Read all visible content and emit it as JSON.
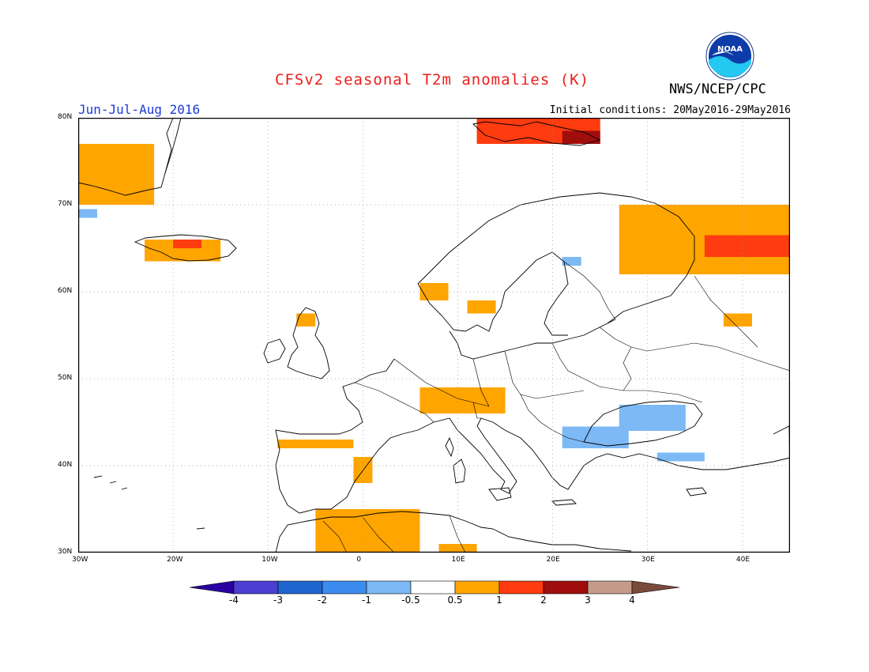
{
  "title": "CFSv2 seasonal T2m anomalies (K)",
  "season": "Jun-Jul-Aug 2016",
  "initial_conditions": "Initial conditions: 20May2016-29May2016",
  "organization": "NWS/NCEP/CPC",
  "logo_text": "NOAA",
  "map": {
    "lon_range": [
      -30,
      45
    ],
    "lat_range": [
      30,
      80
    ],
    "grid": true,
    "lon_ticks": [
      "30W",
      "20W",
      "10W",
      "0",
      "10E",
      "20E",
      "30E",
      "40E"
    ],
    "lat_ticks": [
      "80N",
      "70N",
      "60N",
      "50N",
      "40N",
      "30N"
    ]
  },
  "colorbar": {
    "labels": [
      "-4",
      "-3",
      "-2",
      "-1",
      "-0.5",
      "0.5",
      "1",
      "2",
      "3",
      "4"
    ],
    "colors": [
      "#2a00a0",
      "#4a3fd0",
      "#1f66d0",
      "#3c8cf0",
      "#7db9f4",
      "#ffffff",
      "#ffa500",
      "#ff3b10",
      "#a00d0d",
      "#c79b8c",
      "#7a4a3a"
    ]
  },
  "anomaly_regions": [
    {
      "category": "0.5 to 1",
      "color": "#ffa500",
      "lon": [
        -30,
        -22
      ],
      "lat": [
        70,
        77
      ]
    },
    {
      "category": "0.5 to 1",
      "color": "#ffa500",
      "lon": [
        -23,
        -15
      ],
      "lat": [
        63.5,
        66
      ]
    },
    {
      "category": "1 to 2",
      "color": "#ff3b10",
      "lon": [
        -20,
        -17
      ],
      "lat": [
        65,
        66
      ]
    },
    {
      "category": "1 to 2",
      "color": "#ff3b10",
      "lon": [
        12,
        25
      ],
      "lat": [
        77,
        80
      ]
    },
    {
      "category": "2 to 3",
      "color": "#a00d0d",
      "lon": [
        21,
        25
      ],
      "lat": [
        77,
        78.5
      ]
    },
    {
      "category": "0.5 to 1",
      "color": "#ffa500",
      "lon": [
        27,
        45
      ],
      "lat": [
        62,
        70
      ]
    },
    {
      "category": "1 to 2",
      "color": "#ff3b10",
      "lon": [
        36,
        45
      ],
      "lat": [
        64,
        66.5
      ]
    },
    {
      "category": "0.5 to 1",
      "color": "#ffa500",
      "lon": [
        -7,
        -5
      ],
      "lat": [
        56,
        57.5
      ]
    },
    {
      "category": "0.5 to 1",
      "color": "#ffa500",
      "lon": [
        6,
        9
      ],
      "lat": [
        59,
        61
      ]
    },
    {
      "category": "0.5 to 1",
      "color": "#ffa500",
      "lon": [
        11,
        14
      ],
      "lat": [
        57.5,
        59
      ]
    },
    {
      "category": "0.5 to 1",
      "color": "#ffa500",
      "lon": [
        38,
        41
      ],
      "lat": [
        56,
        57.5
      ]
    },
    {
      "category": "0.5 to 1",
      "color": "#ffa500",
      "lon": [
        6,
        15
      ],
      "lat": [
        46,
        49
      ]
    },
    {
      "category": "0.5 to 1",
      "color": "#ffa500",
      "lon": [
        -9,
        -1
      ],
      "lat": [
        42,
        43
      ]
    },
    {
      "category": "0.5 to 1",
      "color": "#ffa500",
      "lon": [
        -1,
        1
      ],
      "lat": [
        38,
        41
      ]
    },
    {
      "category": "0.5 to 1",
      "color": "#ffa500",
      "lon": [
        -5,
        6
      ],
      "lat": [
        30,
        35
      ]
    },
    {
      "category": "0.5 to 1",
      "color": "#ffa500",
      "lon": [
        8,
        12
      ],
      "lat": [
        30,
        31
      ]
    },
    {
      "category": "-1 to -0.5",
      "color": "#7db9f4",
      "lon": [
        21,
        28
      ],
      "lat": [
        42,
        44.5
      ]
    },
    {
      "category": "-1 to -0.5",
      "color": "#7db9f4",
      "lon": [
        27,
        34
      ],
      "lat": [
        44,
        47
      ]
    },
    {
      "category": "-1 to -0.5",
      "color": "#7db9f4",
      "lon": [
        31,
        36
      ],
      "lat": [
        40.5,
        41.5
      ]
    },
    {
      "category": "-1 to -0.5",
      "color": "#7db9f4",
      "lon": [
        21,
        23
      ],
      "lat": [
        63,
        64
      ]
    },
    {
      "category": "-1 to -0.5",
      "color": "#7db9f4",
      "lon": [
        -30,
        -28
      ],
      "lat": [
        68.5,
        69.5
      ]
    }
  ]
}
